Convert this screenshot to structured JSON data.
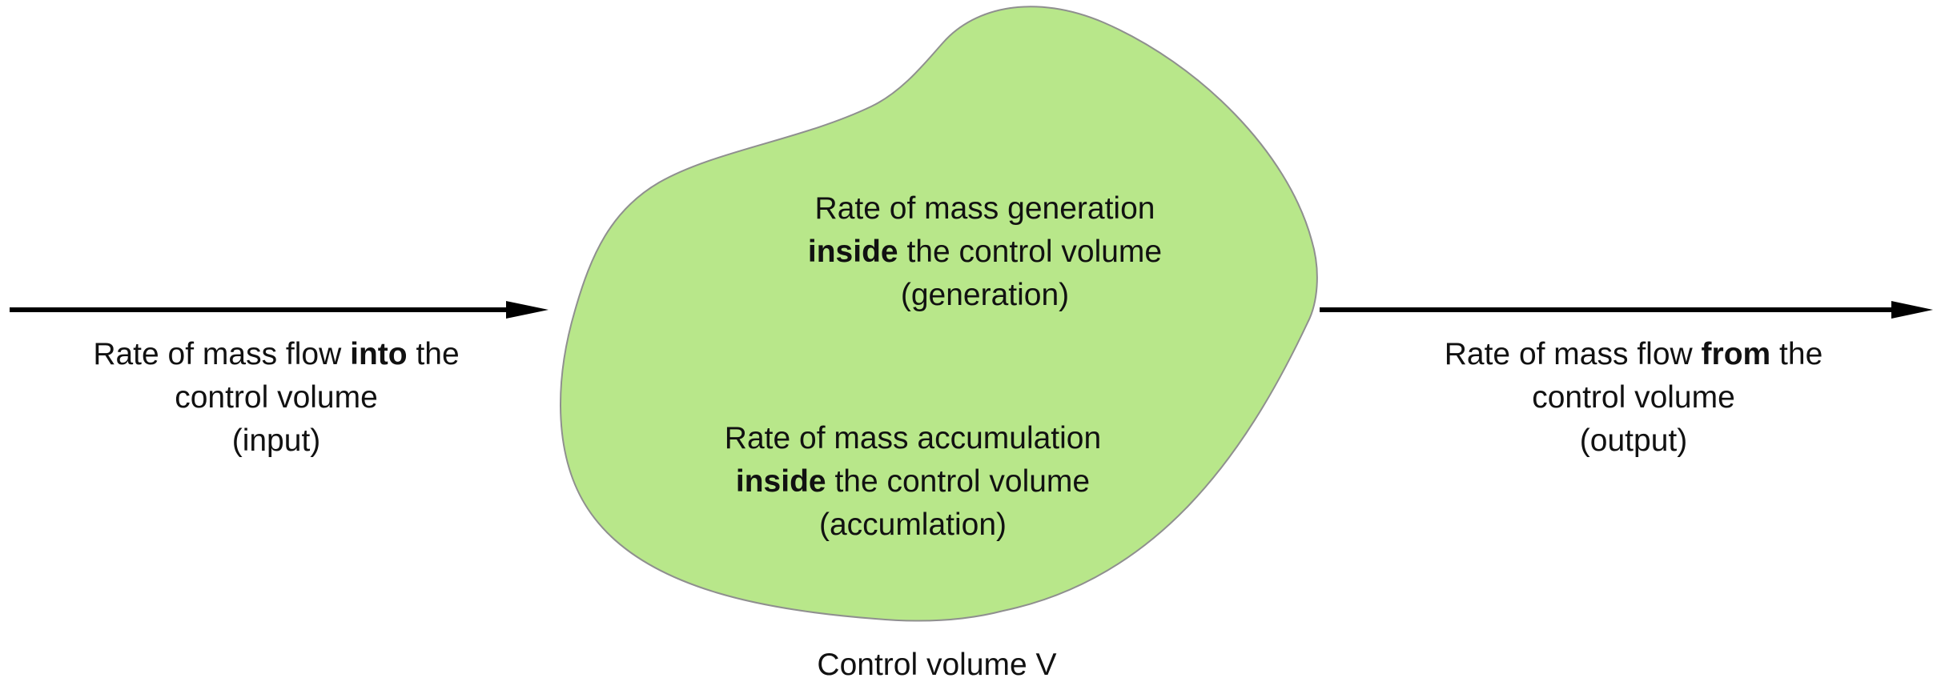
{
  "colors": {
    "region_fill": "#b8e78a",
    "region_stroke": "#8f8f8f",
    "arrow": "#000000",
    "text": "#111111"
  },
  "input": {
    "line1_pre": "Rate of mass flow",
    "line1_bold": "into",
    "line1_post": "the",
    "line2": "control volume",
    "line3": "(input)"
  },
  "output": {
    "line1_pre": "Rate of mass flow",
    "line1_bold": "from",
    "line1_post": "the",
    "line2": "control volume",
    "line3": "(output)"
  },
  "generation": {
    "line1": "Rate of mass generation",
    "line2_bold": "inside",
    "line2_post": "the control volume",
    "line3": "(generation)"
  },
  "accumulation": {
    "line1": "Rate of mass accumulation",
    "line2_bold": "inside",
    "line2_post": "the control volume",
    "line3": "(accumlation)"
  },
  "control_volume": {
    "caption": "Control volume V"
  }
}
